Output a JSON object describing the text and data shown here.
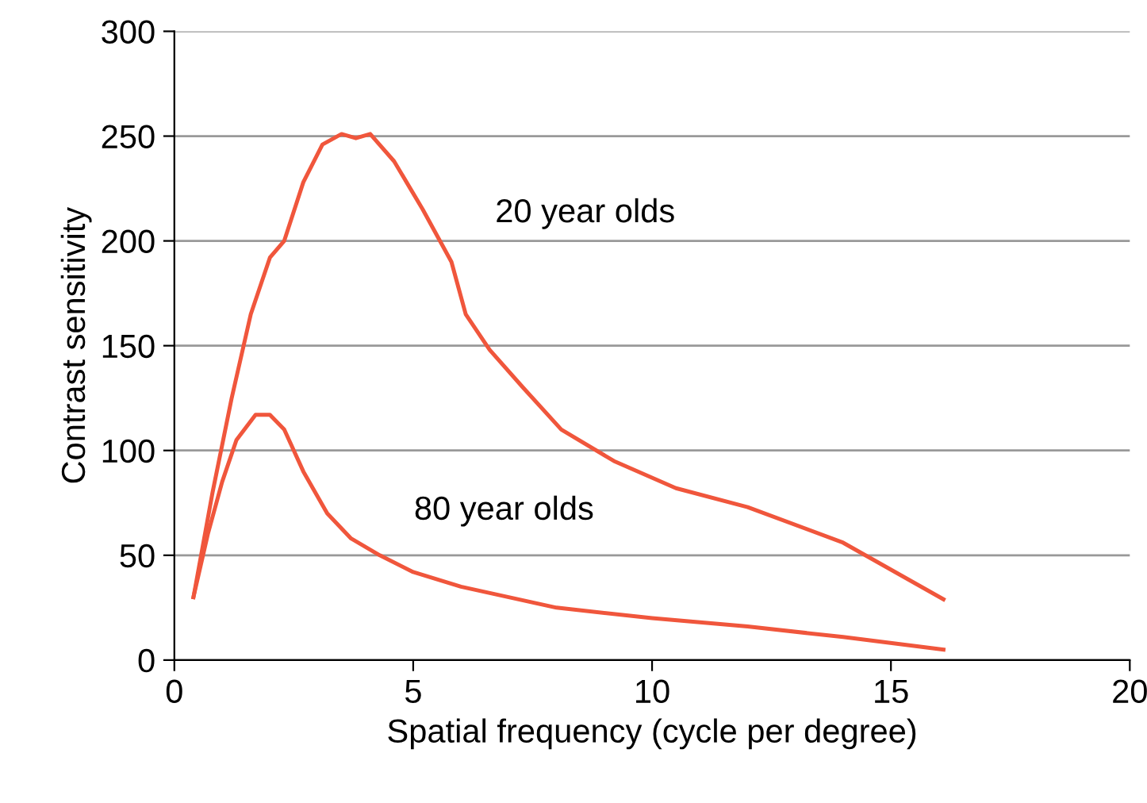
{
  "chart_data": {
    "type": "line",
    "xlabel": "Spatial frequency (cycle per degree)",
    "ylabel": "Contrast sensitivity",
    "xlim": [
      0,
      20
    ],
    "xticks": [
      0,
      5,
      10,
      15,
      20
    ],
    "ylim": [
      0,
      300
    ],
    "yticks": [
      0,
      50,
      100,
      150,
      200,
      250,
      300
    ],
    "grid": "y",
    "marker": "none",
    "line_style": "solid",
    "series": [
      {
        "name": "20 year olds",
        "color": "#f0563c",
        "x": [
          0.4,
          0.8,
          1.2,
          1.6,
          2.0,
          2.3,
          2.7,
          3.1,
          3.5,
          3.8,
          4.1,
          4.6,
          5.2,
          5.8,
          6.1,
          6.6,
          7.3,
          8.1,
          9.2,
          10.5,
          12.0,
          14.0,
          16.1
        ],
        "values": [
          30,
          80,
          125,
          165,
          192,
          200,
          228,
          246,
          251,
          249,
          251,
          238,
          215,
          190,
          165,
          148,
          130,
          110,
          95,
          82,
          73,
          56,
          29
        ]
      },
      {
        "name": "80 year olds",
        "color": "#f0563c",
        "x": [
          0.4,
          0.7,
          1.0,
          1.3,
          1.7,
          2.0,
          2.3,
          2.7,
          3.2,
          3.7,
          4.3,
          5.0,
          6.0,
          7.0,
          8.0,
          10.0,
          12.0,
          14.0,
          16.1
        ],
        "values": [
          30,
          60,
          85,
          105,
          117,
          117,
          110,
          90,
          70,
          58,
          50,
          42,
          35,
          30,
          25,
          20,
          16,
          11,
          5
        ]
      }
    ]
  }
}
